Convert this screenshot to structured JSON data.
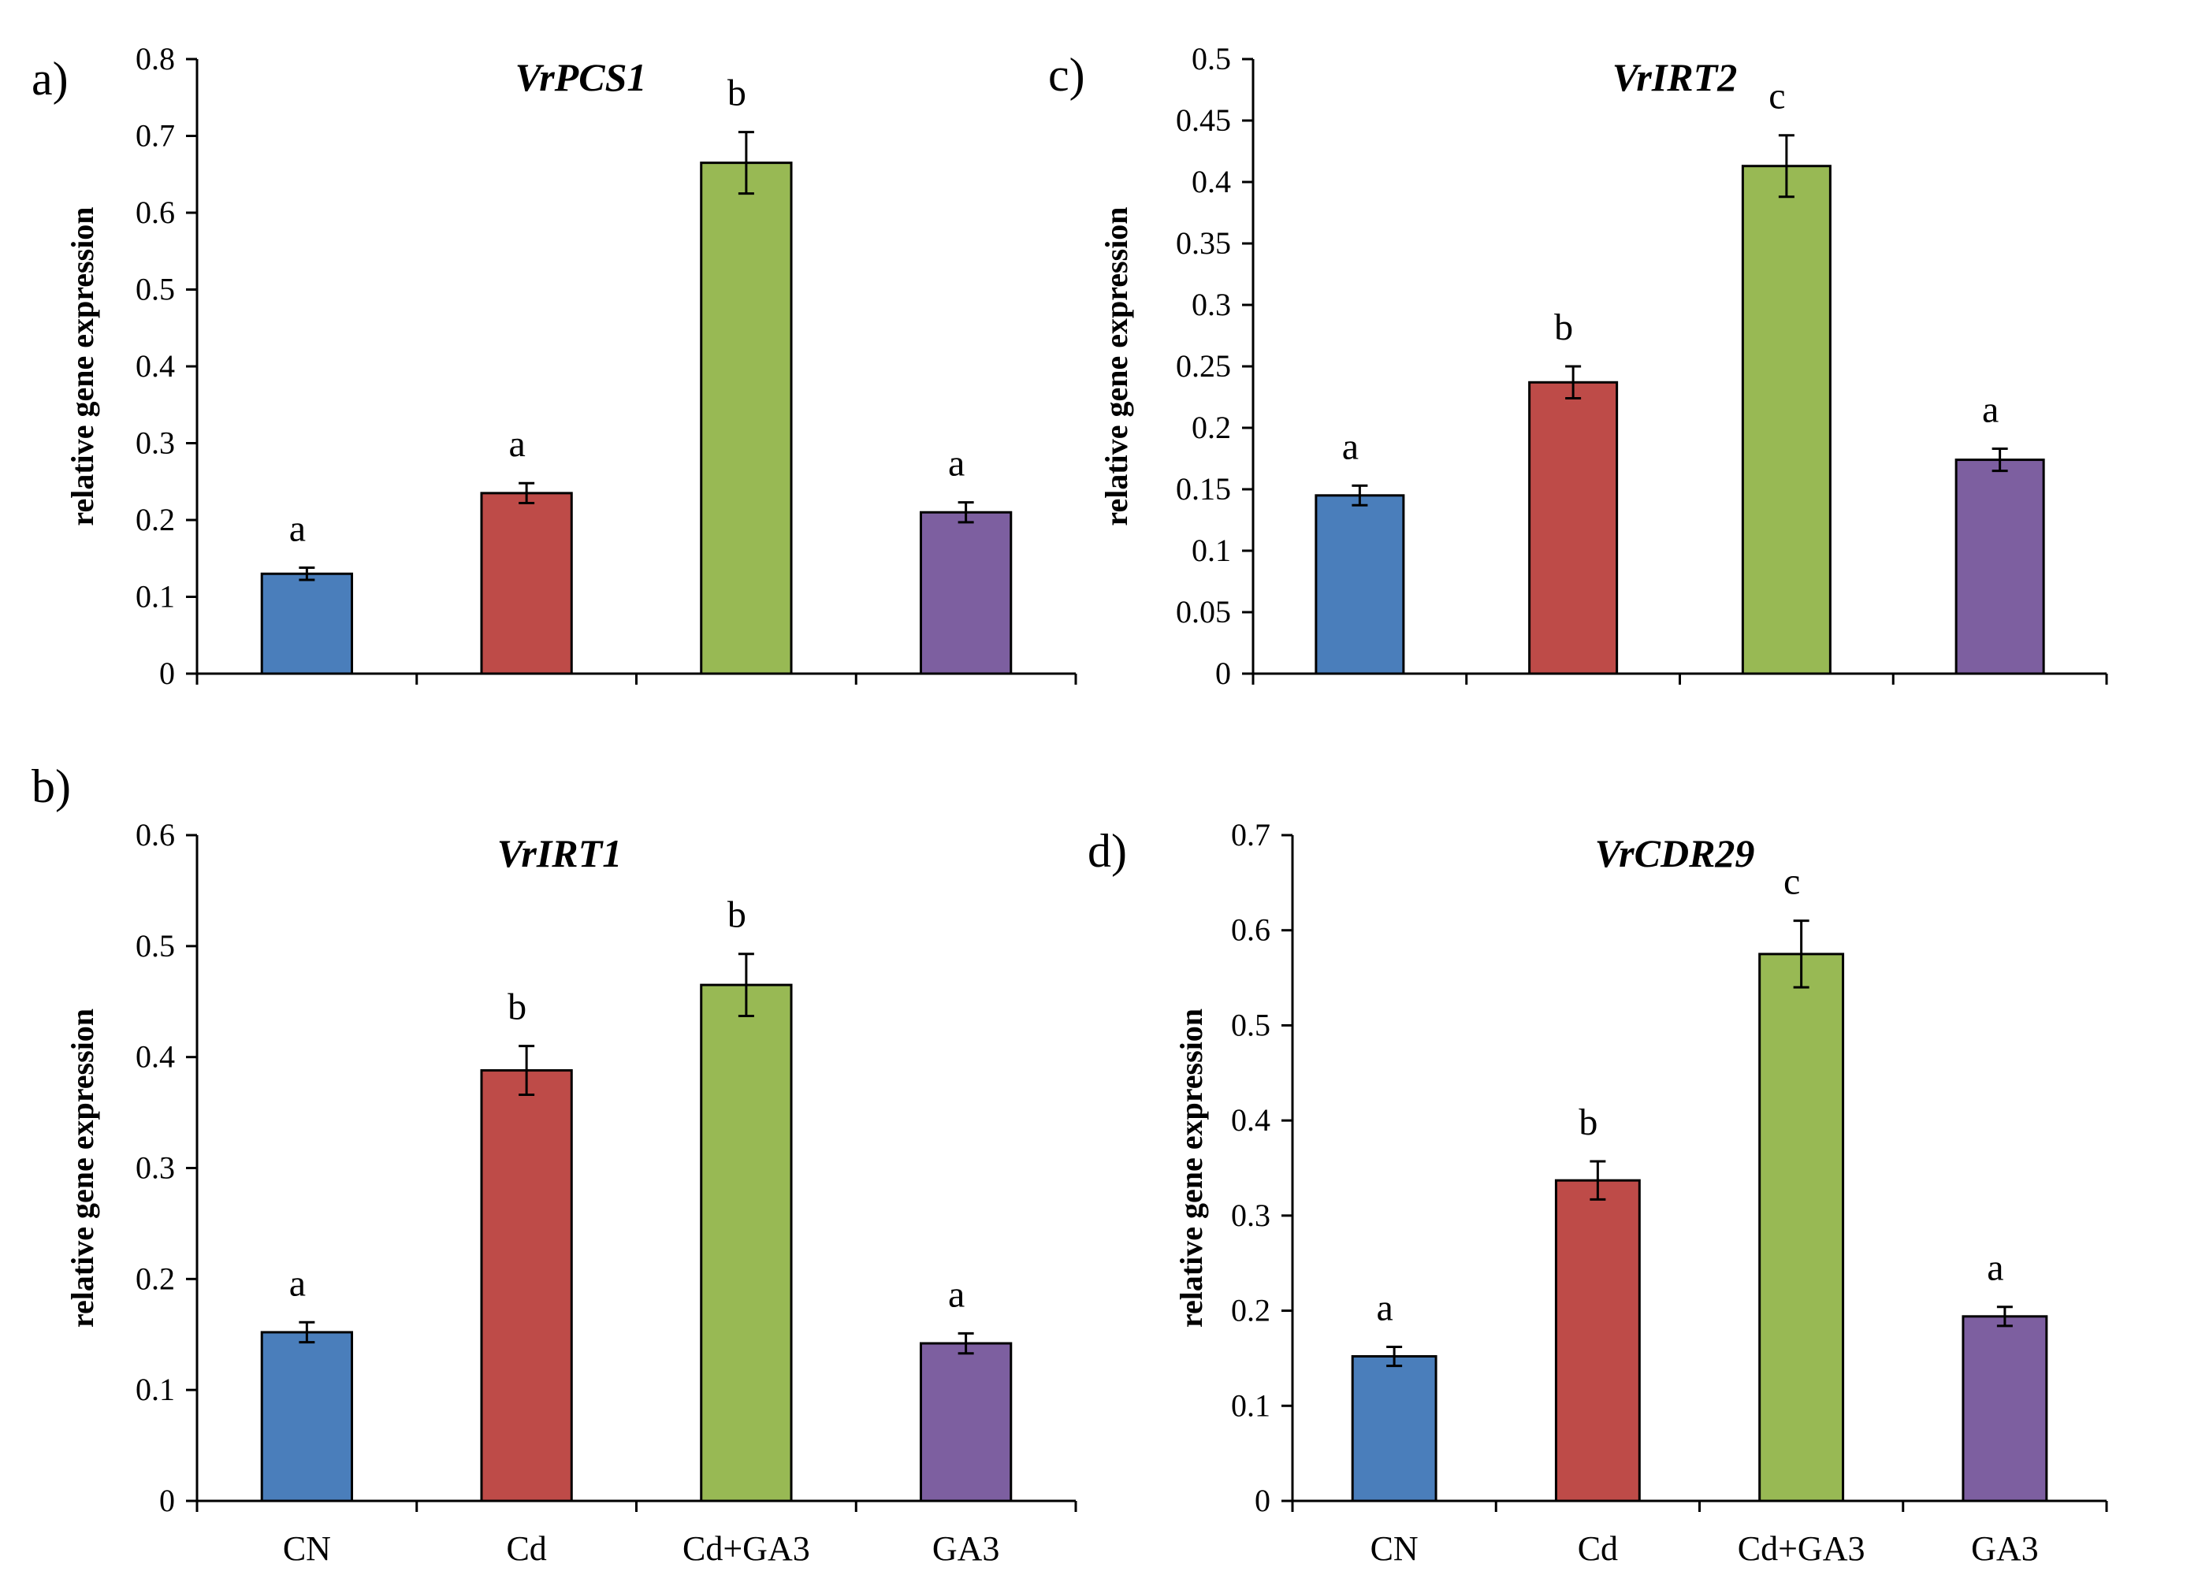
{
  "chart_data": [
    {
      "type": "bar",
      "panel_label": "a)",
      "title": "VrPCS1",
      "ylabel": "relative gene expression",
      "xlabel": "",
      "categories": [
        "CN",
        "Cd",
        "Cd+GA3",
        "GA3"
      ],
      "show_category_labels": false,
      "values": [
        0.13,
        0.235,
        0.665,
        0.21
      ],
      "errors": [
        0.008,
        0.013,
        0.04,
        0.013
      ],
      "significance": [
        "a",
        "a",
        "b",
        "a"
      ],
      "colors": [
        "#4a7ebb",
        "#be4b48",
        "#98b954",
        "#7d5fa0"
      ],
      "ylim": [
        0,
        0.8
      ],
      "yticks": [
        "0",
        "0.1",
        "0.2",
        "0.3",
        "0.4",
        "0.5",
        "0.6",
        "0.7",
        "0.8"
      ],
      "grid": false
    },
    {
      "type": "bar",
      "panel_label": "c)",
      "title": "VrIRT2",
      "ylabel": "relative gene expression",
      "xlabel": "",
      "categories": [
        "CN",
        "Cd",
        "Cd+GA3",
        "GA3"
      ],
      "show_category_labels": false,
      "values": [
        0.145,
        0.237,
        0.413,
        0.174
      ],
      "errors": [
        0.008,
        0.013,
        0.025,
        0.009
      ],
      "significance": [
        "a",
        "b",
        "c",
        "a"
      ],
      "colors": [
        "#4a7ebb",
        "#be4b48",
        "#98b954",
        "#7d5fa0"
      ],
      "ylim": [
        0,
        0.5
      ],
      "yticks": [
        "0",
        "0.05",
        "0.1",
        "0.15",
        "0.2",
        "0.25",
        "0.3",
        "0.35",
        "0.4",
        "0.45",
        "0.5"
      ],
      "grid": false
    },
    {
      "type": "bar",
      "panel_label": "b)",
      "title": "VrIRT1",
      "ylabel": "relative gene expression",
      "xlabel": "",
      "categories": [
        "CN",
        "Cd",
        "Cd+GA3",
        "GA3"
      ],
      "show_category_labels": true,
      "values": [
        0.152,
        0.388,
        0.465,
        0.142
      ],
      "errors": [
        0.009,
        0.022,
        0.028,
        0.009
      ],
      "significance": [
        "a",
        "b",
        "b",
        "a"
      ],
      "colors": [
        "#4a7ebb",
        "#be4b48",
        "#98b954",
        "#7d5fa0"
      ],
      "ylim": [
        0,
        0.6
      ],
      "yticks": [
        "0",
        "0.1",
        "0.2",
        "0.3",
        "0.4",
        "0.5",
        "0.6"
      ],
      "grid": false
    },
    {
      "type": "bar",
      "panel_label": "d)",
      "title": "VrCDR29",
      "ylabel": "relative gene expression",
      "xlabel": "",
      "categories": [
        "CN",
        "Cd",
        "Cd+GA3",
        "GA3"
      ],
      "show_category_labels": true,
      "values": [
        0.152,
        0.337,
        0.575,
        0.194
      ],
      "errors": [
        0.01,
        0.02,
        0.035,
        0.01
      ],
      "significance": [
        "a",
        "b",
        "c",
        "a"
      ],
      "colors": [
        "#4a7ebb",
        "#be4b48",
        "#98b954",
        "#7d5fa0"
      ],
      "ylim": [
        0,
        0.7
      ],
      "yticks": [
        "0",
        "0.1",
        "0.2",
        "0.3",
        "0.4",
        "0.5",
        "0.6",
        "0.7"
      ],
      "grid": false
    }
  ]
}
